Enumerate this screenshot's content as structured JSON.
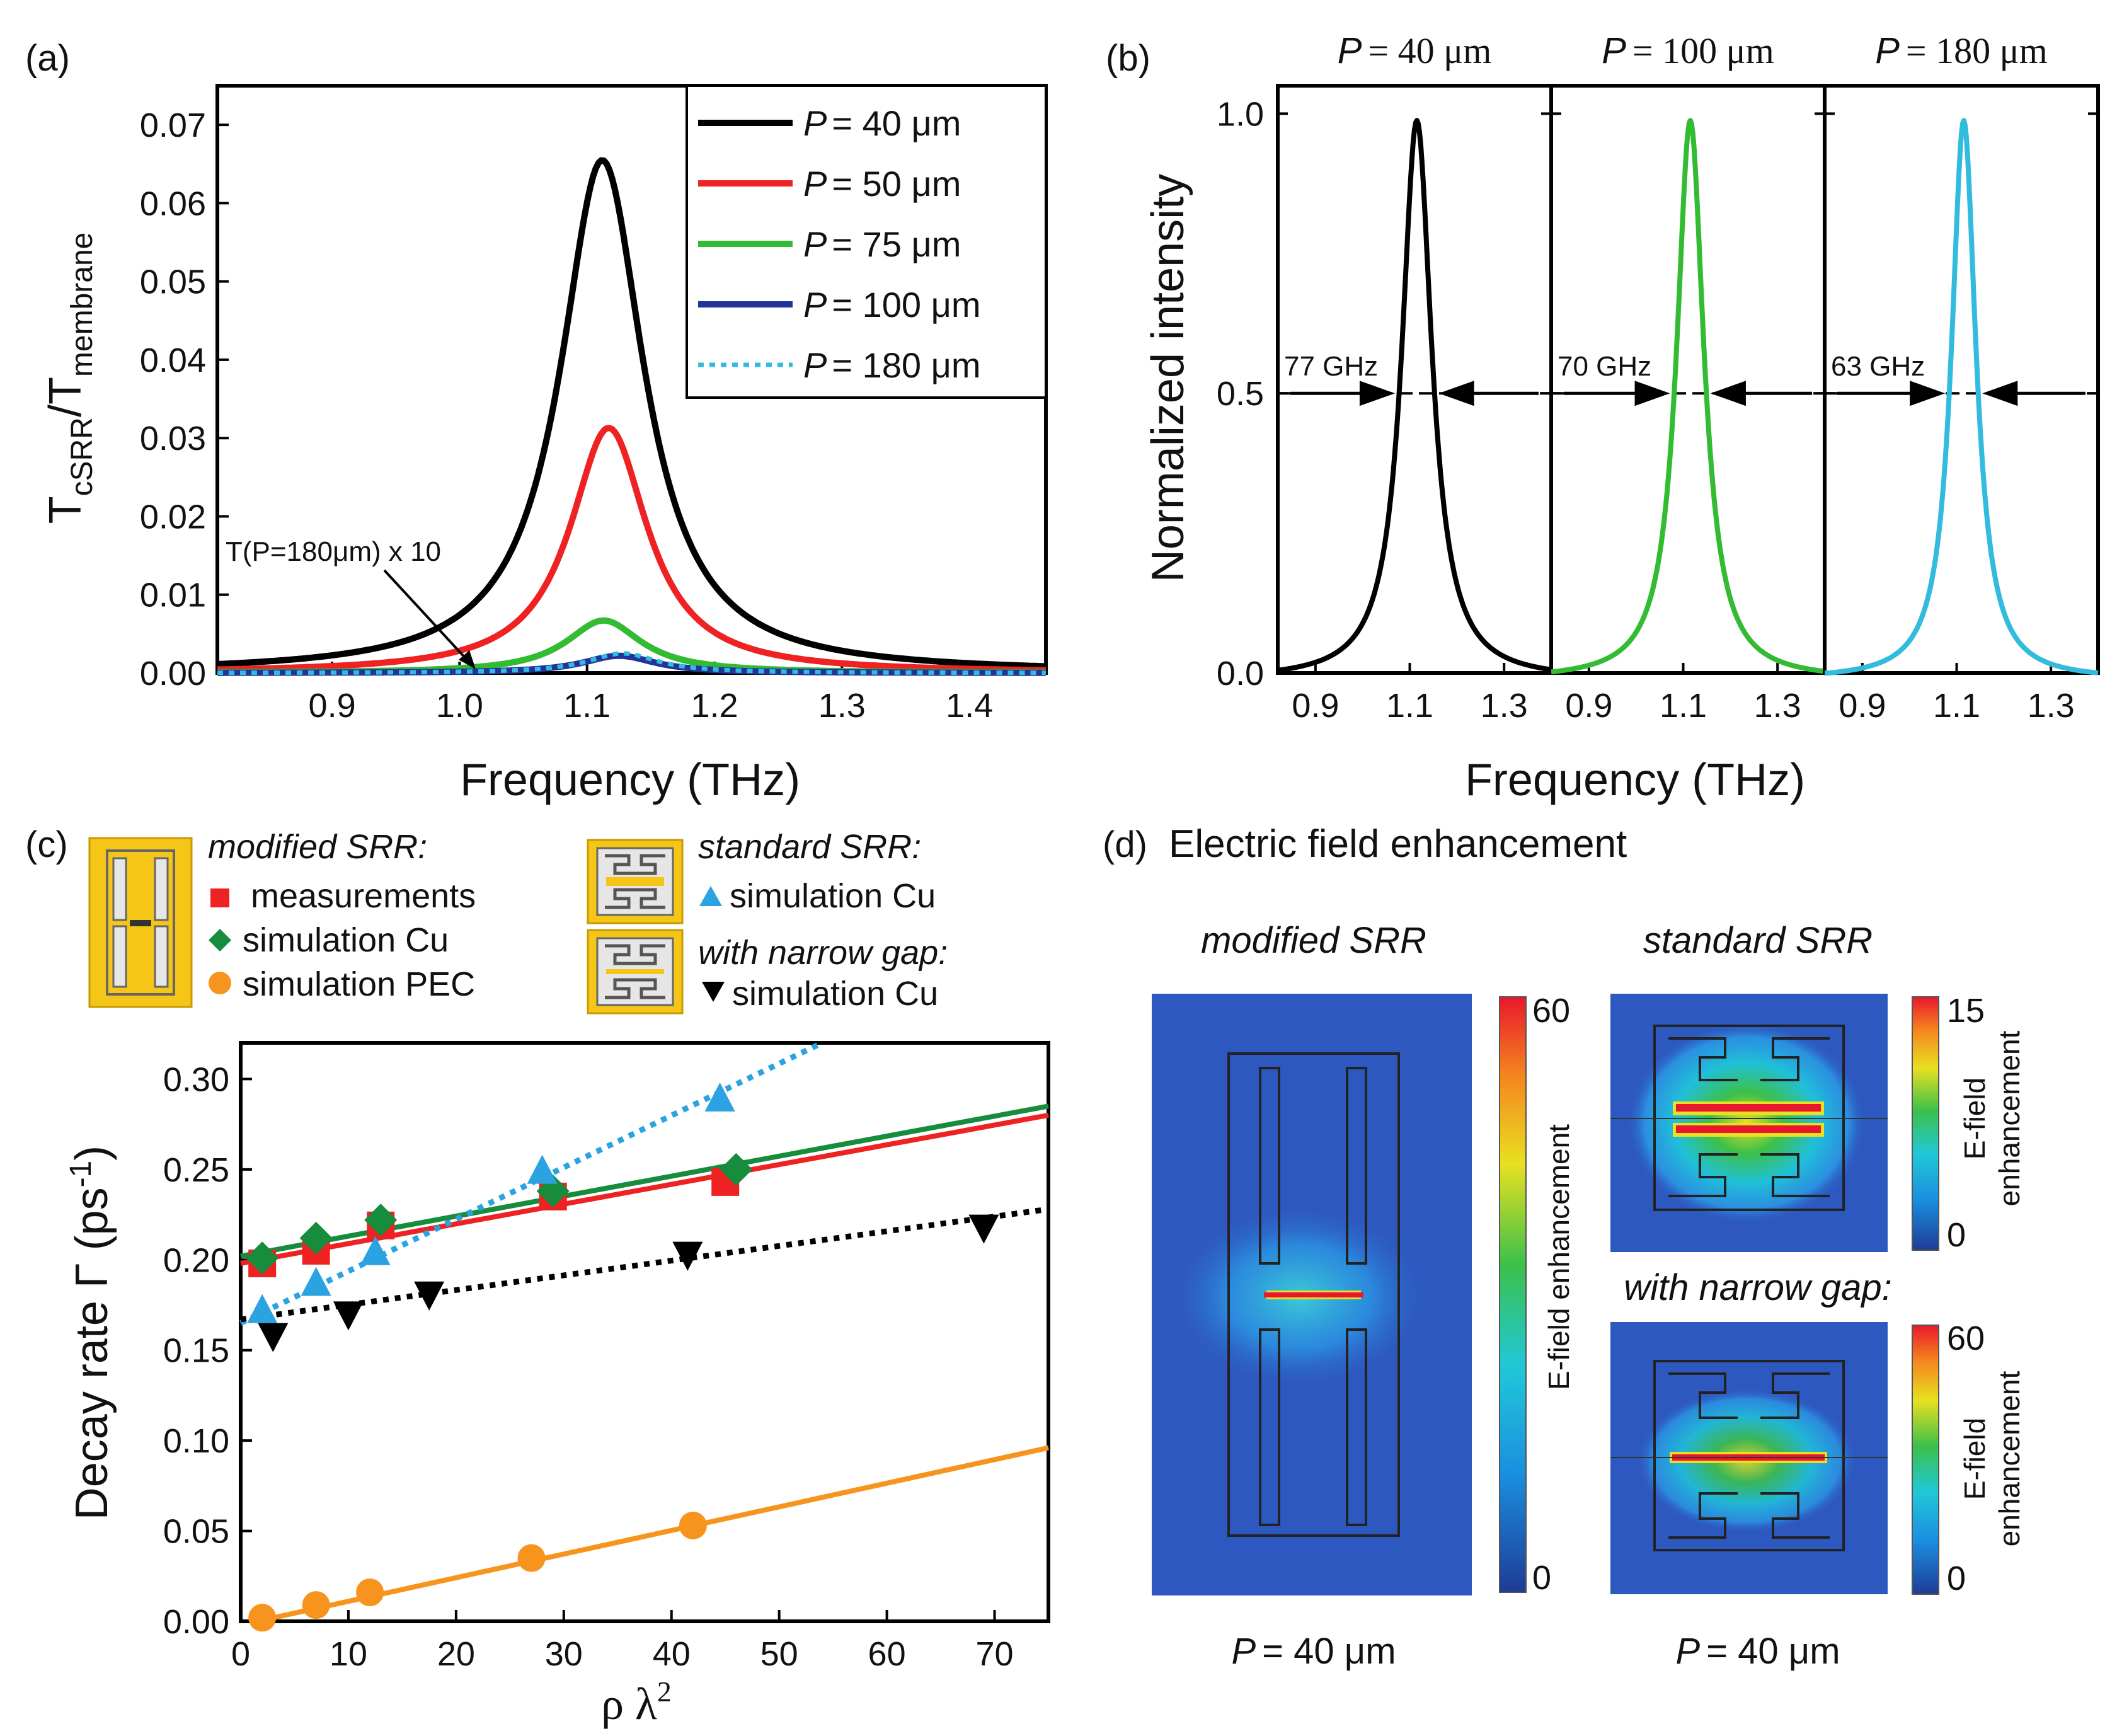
{
  "colors": {
    "p40": "#000000",
    "p50": "#ee2222",
    "p75": "#33bb33",
    "p100": "#22339a",
    "p180": "#33bbdd",
    "measure": "#ee2222",
    "sim_cu": "#168c3c",
    "pec": "#f7941d",
    "std_sim": "#2aa3e0",
    "narrow": "#000000",
    "resonator_bg": "#f5c518",
    "cbar_bottom": "#1e3c96",
    "cbar_top": "#e8172d"
  },
  "panel_a": {
    "label": "(a)",
    "ylabel_main": "T",
    "ylabel_sub1": "cSRR",
    "ylabel_slash": "/T",
    "ylabel_sub2": "membrane",
    "annotation": "T(P=180μm) x 10"
  },
  "panel_b": {
    "label": "(b)",
    "p_prefix": "P",
    "titles": [
      "= 40 μm",
      "= 100 μm",
      "= 180 μm"
    ],
    "fwhm": [
      "77 GHz",
      "70 GHz",
      "63 GHz"
    ]
  },
  "panel_c": {
    "label": "(c)",
    "legend": {
      "modified_title": "modified SRR:",
      "measurements": "measurements",
      "simulation_cu": "simulation Cu",
      "simulation_pec": "simulation PEC",
      "standard_title": "standard SRR:",
      "standard_sim": "simulation Cu",
      "narrow_title": "with narrow gap:",
      "narrow_sim": "simulation Cu"
    }
  },
  "panel_d": {
    "label": "(d)",
    "title": "Electric field enhancement",
    "modified_label": "modified SRR",
    "standard_label": "standard SRR",
    "narrow_label": "with narrow gap:",
    "cbar_modified": {
      "max": "60",
      "min": "0",
      "title": "E-field enhancement"
    },
    "cbar_standard": {
      "max": "15",
      "min": "0",
      "title1": "E-field",
      "title2": "enhancement"
    },
    "cbar_narrow": {
      "max": "60",
      "min": "0",
      "title1": "E-field",
      "title2": "enhancement"
    },
    "p_prefix": "P",
    "p_value_left": "= 40 μm",
    "p_value_right": "= 40 μm"
  },
  "chart_data": [
    {
      "type": "line",
      "panel": "a",
      "xlabel": "Frequency (THz)",
      "ylabel": "T_cSRR/T_membrane",
      "xlim": [
        0.81,
        1.46
      ],
      "ylim": [
        0.0,
        0.075
      ],
      "xticks": [
        0.9,
        1.0,
        1.1,
        1.2,
        1.3,
        1.4
      ],
      "yticks": [
        0.0,
        0.01,
        0.02,
        0.03,
        0.04,
        0.05,
        0.06,
        0.07
      ],
      "legend_position": "top-right",
      "series": [
        {
          "name": "P = 40 μm",
          "label_prefix": "P",
          "label_value": "= 40 μm",
          "center": 1.112,
          "peak": 0.0655,
          "hwhm": 0.04,
          "style": "solid",
          "color": "#000000"
        },
        {
          "name": "P = 50 μm",
          "label_prefix": "P",
          "label_value": "= 50 μm",
          "center": 1.117,
          "peak": 0.0313,
          "hwhm": 0.037,
          "style": "solid",
          "color": "#ee2222"
        },
        {
          "name": "P = 75 μm",
          "label_prefix": "P",
          "label_value": "= 75 μm",
          "center": 1.113,
          "peak": 0.0067,
          "hwhm": 0.036,
          "style": "solid",
          "color": "#33bb33"
        },
        {
          "name": "P = 100 μm",
          "label_prefix": "P",
          "label_value": "= 100 μm",
          "center": 1.125,
          "peak": 0.0022,
          "hwhm": 0.035,
          "style": "solid",
          "color": "#22339a"
        },
        {
          "name": "P = 180 μm",
          "label_prefix": "P",
          "label_value": "= 180 μm",
          "center": 1.128,
          "peak": 0.0025,
          "hwhm": 0.034,
          "style": "dotted",
          "color": "#33bbdd"
        }
      ]
    },
    {
      "type": "line",
      "panel": "b",
      "xlabel": "Frequency (THz)",
      "ylabel": "Normalized intensity",
      "xlim": [
        0.82,
        1.4
      ],
      "ylim": [
        0.0,
        1.05
      ],
      "xticks": [
        0.9,
        1.1,
        1.3
      ],
      "xtick_labels": [
        "0.9",
        "1.1",
        "1.3"
      ],
      "yticks": [
        0.0,
        0.5,
        1.0
      ],
      "ytick_labels": [
        "0.0",
        "0.5",
        "1.0"
      ],
      "series": [
        {
          "name": "P = 40 μm",
          "center": 1.115,
          "fwhm_thz": 0.077,
          "peak": 1.0,
          "color": "#000000"
        },
        {
          "name": "P = 100 μm",
          "center": 1.115,
          "fwhm_thz": 0.07,
          "peak": 1.0,
          "color": "#33bb33"
        },
        {
          "name": "P = 180 μm",
          "center": 1.115,
          "fwhm_thz": 0.063,
          "peak": 1.0,
          "color": "#33bbdd"
        }
      ]
    },
    {
      "type": "scatter",
      "panel": "c",
      "xlabel": "ρ λ²",
      "ylabel": "Decay rate Γ (ps⁻¹)",
      "xlim": [
        0,
        75
      ],
      "ylim": [
        0.0,
        0.32
      ],
      "xticks": [
        0,
        10,
        20,
        30,
        40,
        50,
        60,
        70
      ],
      "yticks": [
        0.0,
        0.05,
        0.1,
        0.15,
        0.2,
        0.25,
        0.3
      ],
      "ytick_labels": [
        "0.00",
        "0.05",
        "0.10",
        "0.15",
        "0.20",
        "0.25",
        "0.30"
      ],
      "series": [
        {
          "name": "measurements",
          "marker": "square",
          "color": "#ee2222",
          "x": [
            2.0,
            7.0,
            13.0,
            29.0,
            45.0
          ],
          "y": [
            0.198,
            0.205,
            0.219,
            0.235,
            0.243
          ]
        },
        {
          "name": "simulation Cu",
          "marker": "diamond",
          "color": "#168c3c",
          "x": [
            2.0,
            7.0,
            13.0,
            29.0,
            46.0
          ],
          "y": [
            0.201,
            0.212,
            0.222,
            0.238,
            0.25
          ]
        },
        {
          "name": "simulation PEC",
          "marker": "circle",
          "color": "#f7941d",
          "x": [
            2.0,
            7.0,
            12.0,
            27.0,
            42.0
          ],
          "y": [
            0.002,
            0.009,
            0.016,
            0.035,
            0.053
          ]
        },
        {
          "name": "standard SRR simulation Cu",
          "marker": "triangle-up",
          "color": "#2aa3e0",
          "x": [
            2.0,
            7.0,
            12.5,
            28.0,
            44.5
          ],
          "y": [
            0.172,
            0.187,
            0.204,
            0.249,
            0.289
          ]
        },
        {
          "name": "narrow gap simulation Cu",
          "marker": "triangle-down",
          "color": "#000000",
          "x": [
            3.0,
            10.0,
            17.5,
            41.5,
            69.0
          ],
          "y": [
            0.158,
            0.17,
            0.181,
            0.203,
            0.218
          ]
        }
      ],
      "fits": [
        {
          "name": "fit measurements",
          "color": "#ee2222",
          "style": "solid",
          "x": [
            0,
            75
          ],
          "y": [
            0.198,
            0.28
          ]
        },
        {
          "name": "fit simulation Cu",
          "color": "#168c3c",
          "style": "solid",
          "x": [
            0,
            75
          ],
          "y": [
            0.202,
            0.285
          ]
        },
        {
          "name": "fit simulation PEC",
          "color": "#f7941d",
          "style": "solid",
          "x": [
            0,
            75
          ],
          "y": [
            -0.002,
            0.096
          ]
        },
        {
          "name": "fit standard SRR",
          "color": "#2aa3e0",
          "style": "dotted",
          "x": [
            0,
            54
          ],
          "y": [
            0.165,
            0.32
          ]
        },
        {
          "name": "fit narrow gap",
          "color": "#000000",
          "style": "dotted",
          "x": [
            0,
            75
          ],
          "y": [
            0.167,
            0.228
          ]
        }
      ]
    }
  ]
}
